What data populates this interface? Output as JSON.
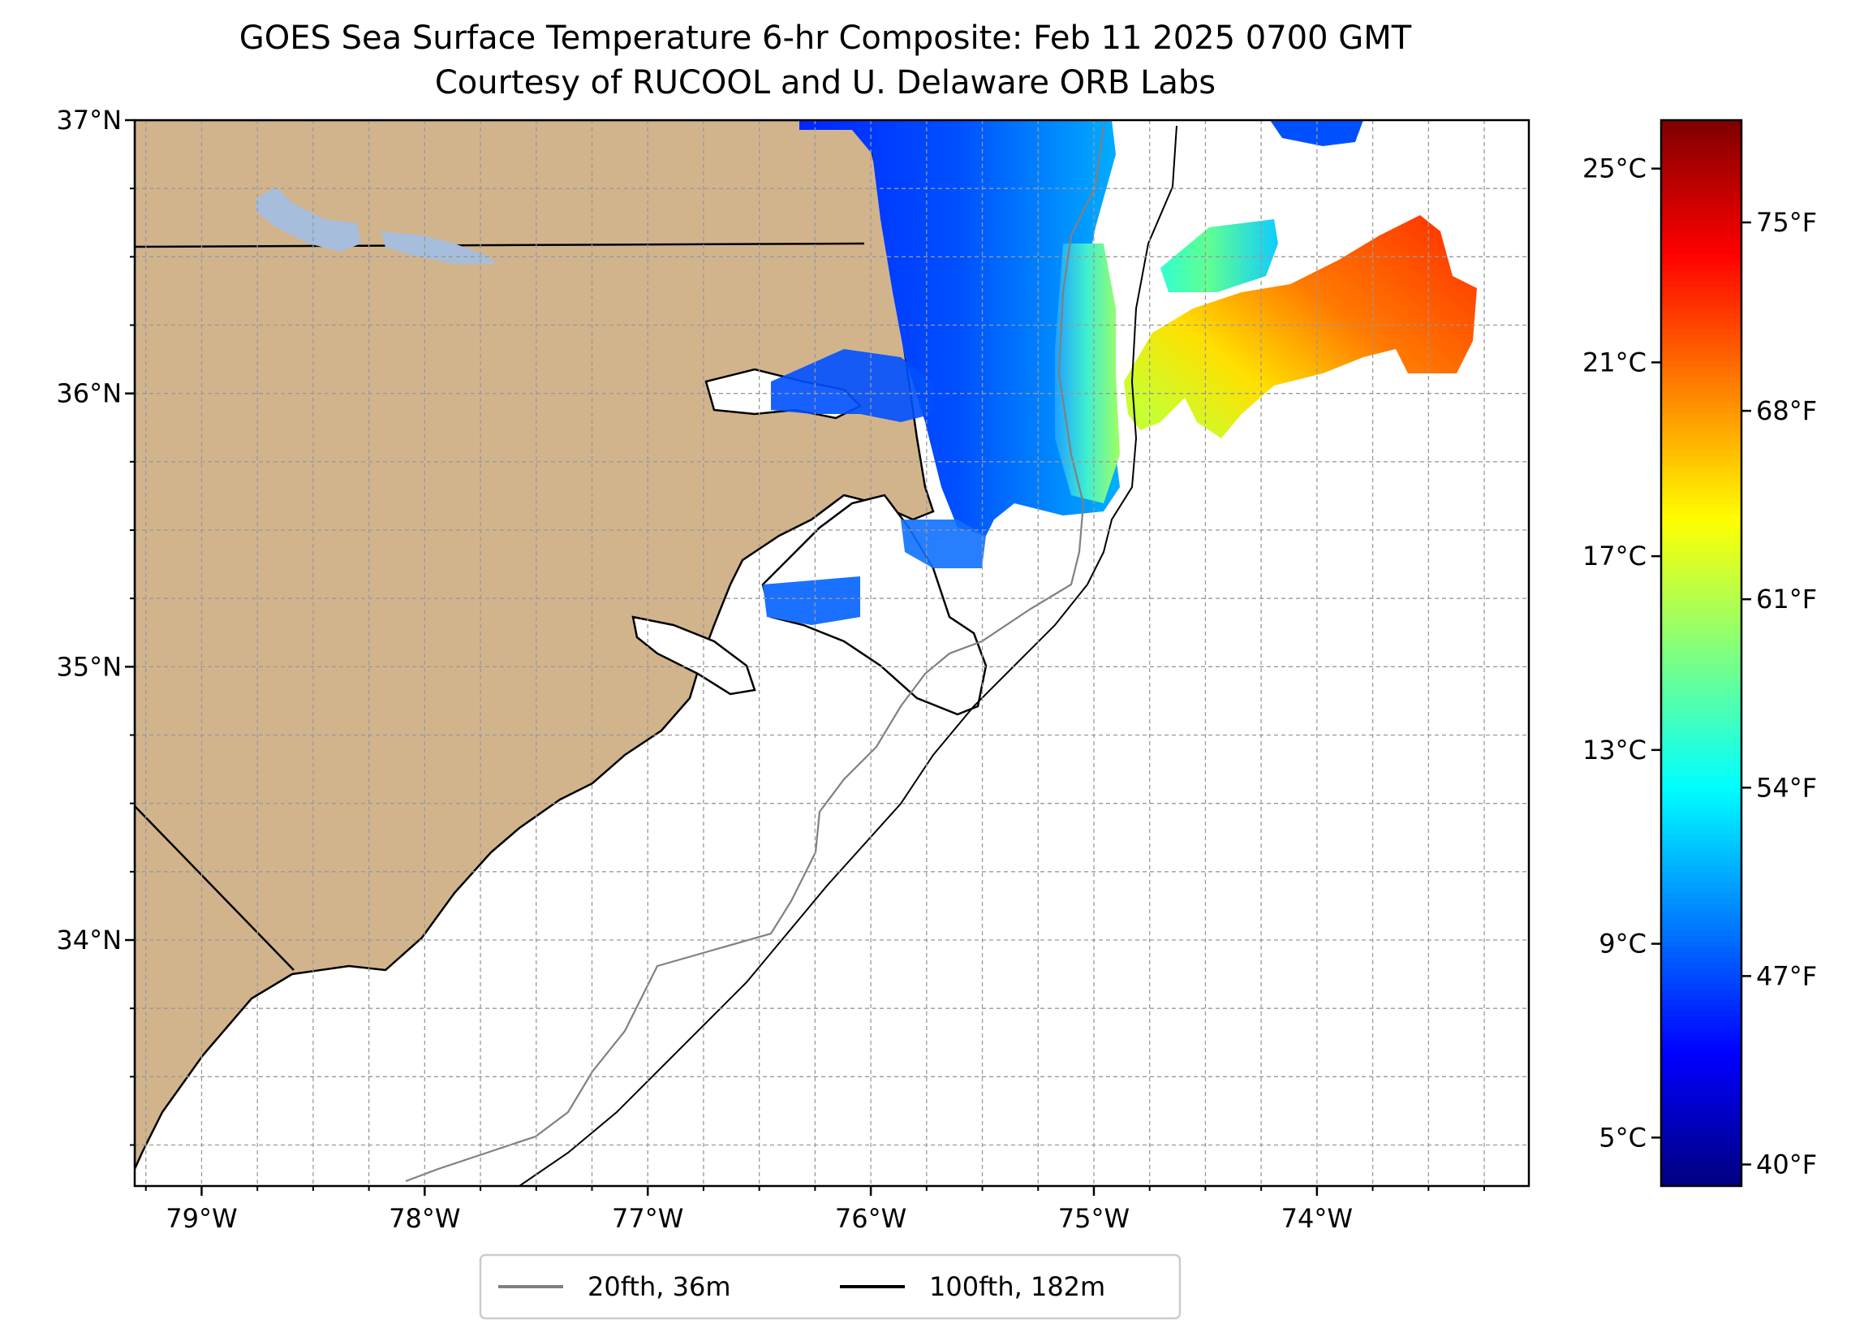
{
  "title": "GOES Sea Surface Temperature 6-hr Composite: Feb 11 2025 0700 GMT",
  "subtitle": "Courtesy of RUCOOL and U. Delaware ORB Labs",
  "map": {
    "lon_range": [
      -79.3,
      -73.05
    ],
    "lat_range": [
      33.1,
      37.0
    ],
    "lon_ticks": [
      {
        "value": -79,
        "label": "79°W"
      },
      {
        "value": -78,
        "label": "78°W"
      },
      {
        "value": -77,
        "label": "77°W"
      },
      {
        "value": -76,
        "label": "76°W"
      },
      {
        "value": -75,
        "label": "75°W"
      },
      {
        "value": -74,
        "label": "74°W"
      }
    ],
    "lat_ticks": [
      {
        "value": 37,
        "label": "37°N"
      },
      {
        "value": 36,
        "label": "36°N"
      },
      {
        "value": 35,
        "label": "35°N"
      },
      {
        "value": 34,
        "label": "34°N"
      }
    ],
    "minor_grid_step_deg": 0.25,
    "land_color": "#d2b48c",
    "water_color": "#ffffff",
    "lake_color": "#a6bddb"
  },
  "legend": {
    "items": [
      {
        "label": "20fth, 36m",
        "color": "#808080"
      },
      {
        "label": "100fth, 182m",
        "color": "#000000"
      }
    ]
  },
  "colorbar": {
    "colormap": "jet",
    "range_c": [
      4.0,
      26.0
    ],
    "celsius_ticks": [
      {
        "value": 25,
        "label": "25°C"
      },
      {
        "value": 21,
        "label": "21°C"
      },
      {
        "value": 17,
        "label": "17°C"
      },
      {
        "value": 13,
        "label": "13°C"
      },
      {
        "value": 9,
        "label": "9°C"
      },
      {
        "value": 5,
        "label": "5°C"
      }
    ],
    "fahrenheit_ticks": [
      {
        "value": 75,
        "label": "75°F"
      },
      {
        "value": 68,
        "label": "68°F"
      },
      {
        "value": 61,
        "label": "61°F"
      },
      {
        "value": 54,
        "label": "54°F"
      },
      {
        "value": 47,
        "label": "47°F"
      },
      {
        "value": 40,
        "label": "40°F"
      }
    ]
  }
}
